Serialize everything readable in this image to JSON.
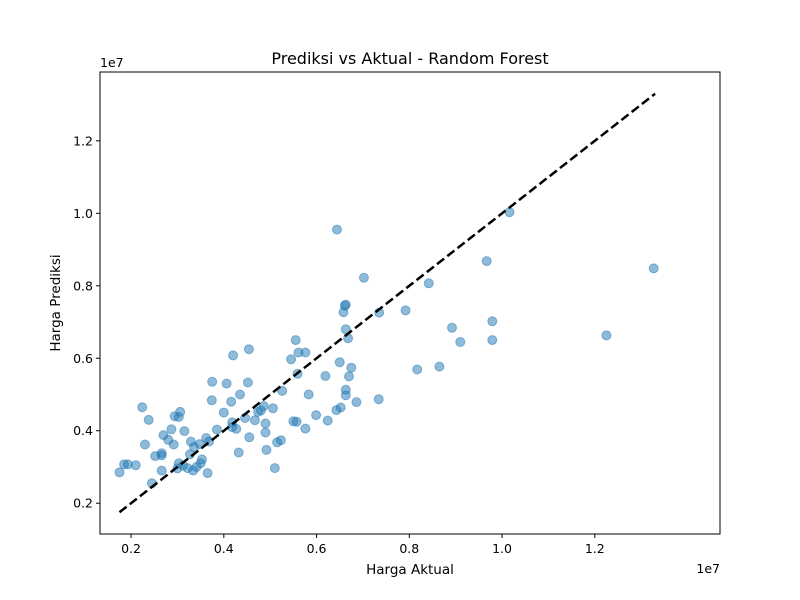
{
  "chart_data": {
    "type": "scatter",
    "title": "Prediksi vs Aktual - Random Forest",
    "xlabel": "Harga Aktual",
    "ylabel": "Harga Prediksi",
    "x_offset_label": "1e7",
    "y_offset_label": "1e7",
    "xlim": [
      1.33,
      14.7
    ],
    "ylim": [
      1.15,
      13.9
    ],
    "xticks": [
      2,
      4,
      6,
      8,
      10,
      12
    ],
    "yticks": [
      2,
      4,
      6,
      8,
      10,
      12
    ],
    "xtick_labels": [
      "0.2",
      "0.4",
      "0.6",
      "0.8",
      "1.0",
      "1.2"
    ],
    "ytick_labels": [
      "0.2",
      "0.4",
      "0.6",
      "0.8",
      "1.0",
      "1.2"
    ],
    "grid": false,
    "legend": "none",
    "point_color": "#1f77b4",
    "point_alpha": 0.5,
    "reference_line": {
      "x": [
        1.75,
        13.3
      ],
      "y": [
        1.75,
        13.3
      ],
      "style": "dashed",
      "color": "#000000"
    },
    "points": [
      [
        1.75,
        2.85
      ],
      [
        1.85,
        3.07
      ],
      [
        1.93,
        3.07
      ],
      [
        2.1,
        3.05
      ],
      [
        2.24,
        4.65
      ],
      [
        2.3,
        3.62
      ],
      [
        2.38,
        4.3
      ],
      [
        2.45,
        2.55
      ],
      [
        2.52,
        3.3
      ],
      [
        2.66,
        3.32
      ],
      [
        2.66,
        3.38
      ],
      [
        2.66,
        2.9
      ],
      [
        2.7,
        3.88
      ],
      [
        2.8,
        3.75
      ],
      [
        2.87,
        4.04
      ],
      [
        2.92,
        3.62
      ],
      [
        2.94,
        4.4
      ],
      [
        3.0,
        2.96
      ],
      [
        3.03,
        3.1
      ],
      [
        3.03,
        4.38
      ],
      [
        3.06,
        4.52
      ],
      [
        3.12,
        3.04
      ],
      [
        3.15,
        3.99
      ],
      [
        3.22,
        2.97
      ],
      [
        3.27,
        3.35
      ],
      [
        3.29,
        3.7
      ],
      [
        3.34,
        2.9
      ],
      [
        3.36,
        3.55
      ],
      [
        3.41,
        3.0
      ],
      [
        3.48,
        3.63
      ],
      [
        3.5,
        3.1
      ],
      [
        3.53,
        3.21
      ],
      [
        3.62,
        3.8
      ],
      [
        3.65,
        2.83
      ],
      [
        3.68,
        3.7
      ],
      [
        3.74,
        4.84
      ],
      [
        3.75,
        5.35
      ],
      [
        3.85,
        4.03
      ],
      [
        4.0,
        4.5
      ],
      [
        4.06,
        5.3
      ],
      [
        4.16,
        4.8
      ],
      [
        4.18,
        4.23
      ],
      [
        4.18,
        4.1
      ],
      [
        4.2,
        6.08
      ],
      [
        4.27,
        4.05
      ],
      [
        4.32,
        3.4
      ],
      [
        4.35,
        5.0
      ],
      [
        4.46,
        4.35
      ],
      [
        4.52,
        5.33
      ],
      [
        4.54,
        6.25
      ],
      [
        4.55,
        3.82
      ],
      [
        4.67,
        4.29
      ],
      [
        4.74,
        4.52
      ],
      [
        4.8,
        4.56
      ],
      [
        4.86,
        4.68
      ],
      [
        4.9,
        4.2
      ],
      [
        4.9,
        3.95
      ],
      [
        4.92,
        3.47
      ],
      [
        5.06,
        4.62
      ],
      [
        5.1,
        2.97
      ],
      [
        5.15,
        3.68
      ],
      [
        5.23,
        3.74
      ],
      [
        5.26,
        5.1
      ],
      [
        5.45,
        5.97
      ],
      [
        5.5,
        4.26
      ],
      [
        5.55,
        6.5
      ],
      [
        5.57,
        4.25
      ],
      [
        5.59,
        5.57
      ],
      [
        5.61,
        6.16
      ],
      [
        5.76,
        4.06
      ],
      [
        5.76,
        6.16
      ],
      [
        5.83,
        5.0
      ],
      [
        5.99,
        4.43
      ],
      [
        6.19,
        5.51
      ],
      [
        6.24,
        4.28
      ],
      [
        6.43,
        4.57
      ],
      [
        6.44,
        9.55
      ],
      [
        6.5,
        5.89
      ],
      [
        6.52,
        4.64
      ],
      [
        6.58,
        7.27
      ],
      [
        6.61,
        7.45
      ],
      [
        6.63,
        7.48
      ],
      [
        6.63,
        6.8
      ],
      [
        6.63,
        5.13
      ],
      [
        6.63,
        4.98
      ],
      [
        6.68,
        6.55
      ],
      [
        6.7,
        5.5
      ],
      [
        6.75,
        5.74
      ],
      [
        6.86,
        4.79
      ],
      [
        7.02,
        8.22
      ],
      [
        7.34,
        4.87
      ],
      [
        7.35,
        7.26
      ],
      [
        7.92,
        7.32
      ],
      [
        8.17,
        5.69
      ],
      [
        8.42,
        8.07
      ],
      [
        8.65,
        5.77
      ],
      [
        8.92,
        6.84
      ],
      [
        9.1,
        6.45
      ],
      [
        9.67,
        8.68
      ],
      [
        9.79,
        7.02
      ],
      [
        9.79,
        6.5
      ],
      [
        10.16,
        10.03
      ],
      [
        12.25,
        6.63
      ],
      [
        13.27,
        8.48
      ]
    ]
  }
}
